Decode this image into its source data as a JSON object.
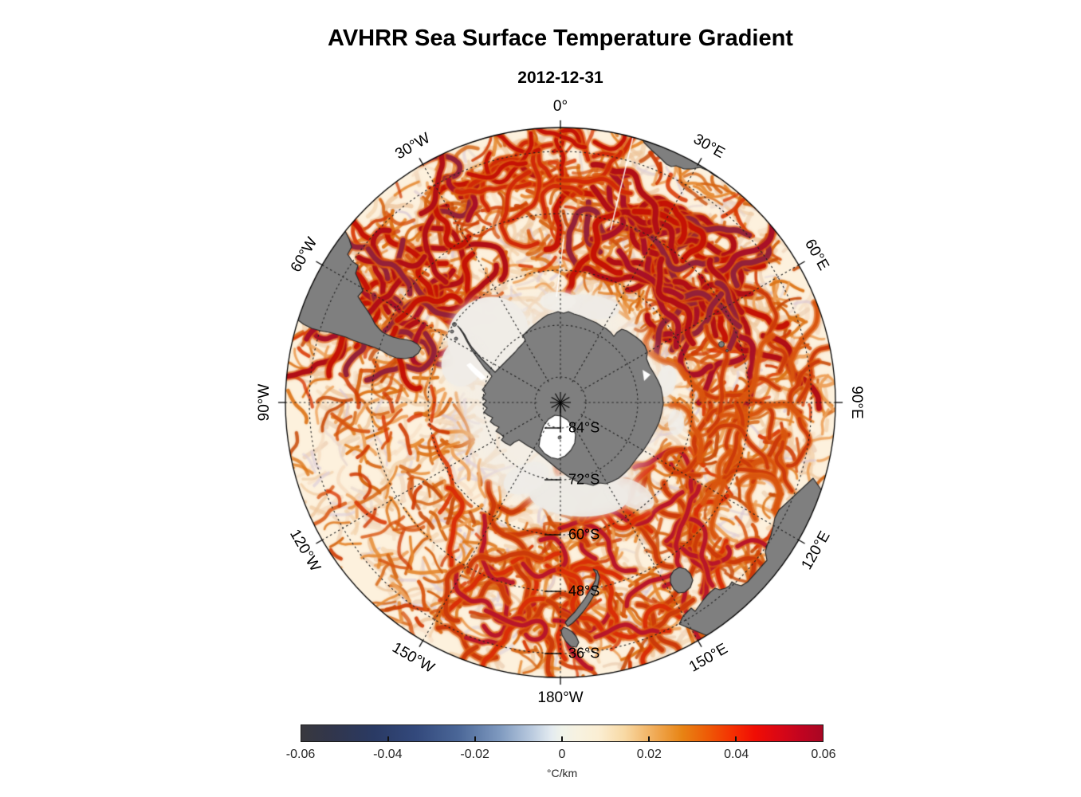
{
  "title": "AVHRR Sea Surface Temperature Gradient",
  "subtitle": "2012-12-31",
  "map": {
    "meridian_labels": [
      {
        "text": "0°",
        "az": 0
      },
      {
        "text": "30°E",
        "az": 30
      },
      {
        "text": "60°E",
        "az": 60
      },
      {
        "text": "90°E",
        "az": 90
      },
      {
        "text": "120°E",
        "az": 120
      },
      {
        "text": "150°E",
        "az": 150
      },
      {
        "text": "180°W",
        "az": 180
      },
      {
        "text": "150°W",
        "az": -150
      },
      {
        "text": "120°W",
        "az": -120
      },
      {
        "text": "90°W",
        "az": -90
      },
      {
        "text": "60°W",
        "az": -60
      },
      {
        "text": "30°W",
        "az": -30
      }
    ],
    "latitude_labels": [
      {
        "text": "84°S",
        "r": 32
      },
      {
        "text": "72°S",
        "r": 97
      },
      {
        "text": "60°S",
        "r": 166
      },
      {
        "text": "48°S",
        "r": 237
      },
      {
        "text": "36°S",
        "r": 315
      }
    ]
  },
  "colorbar": {
    "ticks": [
      "-0.06",
      "-0.04",
      "-0.02",
      "0",
      "0.02",
      "0.04",
      "0.06"
    ],
    "unit": "°C/km",
    "stops": [
      {
        "p": 0.0,
        "c": "#38383e"
      },
      {
        "p": 0.06,
        "c": "#31364c"
      },
      {
        "p": 0.14,
        "c": "#2a3a64"
      },
      {
        "p": 0.22,
        "c": "#33497c"
      },
      {
        "p": 0.3,
        "c": "#4a6697"
      },
      {
        "p": 0.38,
        "c": "#7e99bf"
      },
      {
        "p": 0.44,
        "c": "#b8c9de"
      },
      {
        "p": 0.48,
        "c": "#e4ebf0"
      },
      {
        "p": 0.5,
        "c": "#f0f3ea"
      },
      {
        "p": 0.53,
        "c": "#f7f2e0"
      },
      {
        "p": 0.57,
        "c": "#fbeed3"
      },
      {
        "p": 0.62,
        "c": "#f8d9a4"
      },
      {
        "p": 0.68,
        "c": "#f0a953"
      },
      {
        "p": 0.73,
        "c": "#e88414"
      },
      {
        "p": 0.78,
        "c": "#ee5a06"
      },
      {
        "p": 0.83,
        "c": "#f52d02"
      },
      {
        "p": 0.87,
        "c": "#f00d04"
      },
      {
        "p": 0.92,
        "c": "#d80716"
      },
      {
        "p": 0.96,
        "c": "#c00420"
      },
      {
        "p": 1.0,
        "c": "#a80724"
      }
    ]
  },
  "colors": {
    "land": "#7f7f7f",
    "coast": "#2b2b2b",
    "ocean": "#fdf1dd",
    "ice": "#ffffff",
    "pale_zone": "#f2eee7",
    "graticule": "#222222",
    "outline": "#000000",
    "texture_light": [
      "#f6ddc2",
      "#f2cfa8",
      "#eec79e",
      "#edd0b4"
    ],
    "texture_lavender": [
      "#ded0da",
      "#e6d4cd",
      "#d9c6d2"
    ],
    "texture_orange": [
      "#eda15a",
      "#e68a33",
      "#dd7518",
      "#d66512"
    ],
    "texture_red": [
      "#d85510",
      "#d03c05",
      "#c84a08",
      "#da3a06"
    ],
    "texture_dark": [
      "#c41206",
      "#a81028",
      "#93203a",
      "#b00d16"
    ]
  }
}
